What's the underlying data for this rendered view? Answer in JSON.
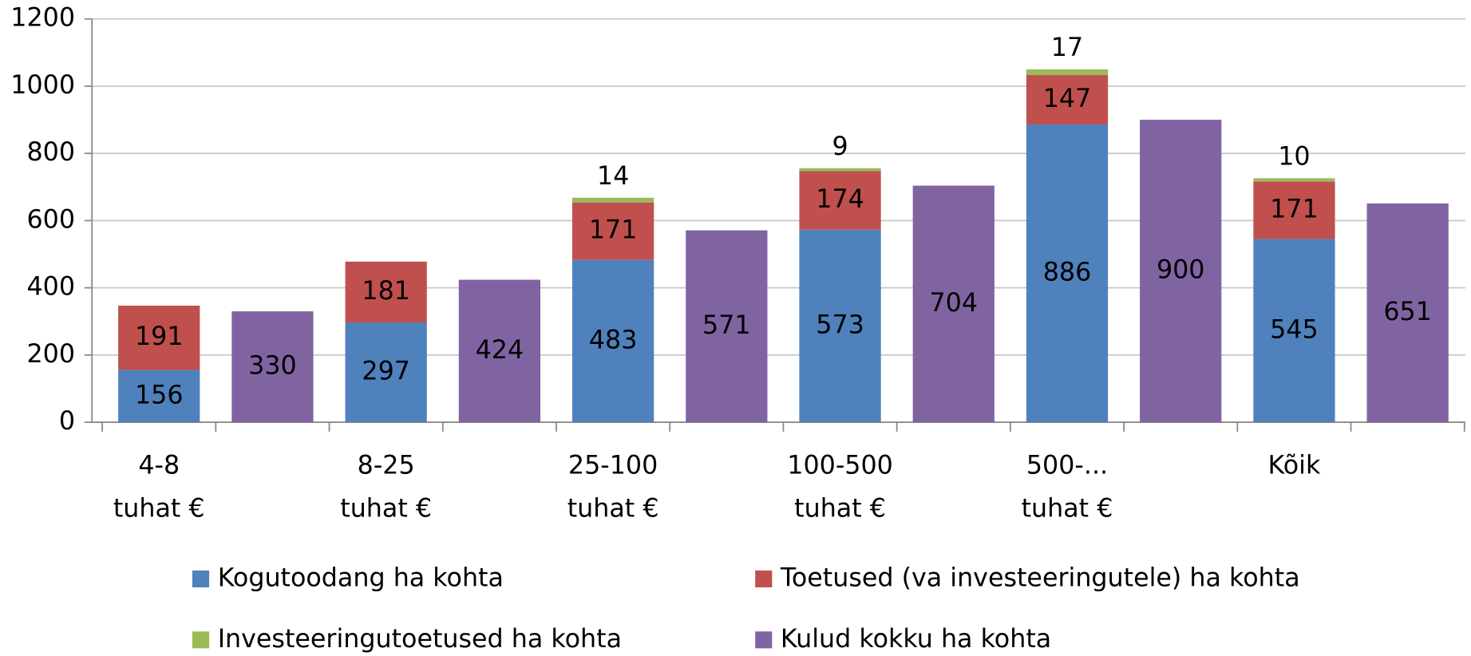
{
  "chart_data": {
    "type": "bar",
    "categories": [
      "4-8\ntuhat €",
      "8-25\ntuhat €",
      "25-100\ntuhat €",
      "100-500\ntuhat €",
      "500-...\ntuhat €",
      "Kõik"
    ],
    "series": [
      {
        "name": "Kogutoodang ha kohta",
        "color": "#4f81bd",
        "group": 0,
        "values": [
          156,
          297,
          483,
          573,
          886,
          545
        ]
      },
      {
        "name": "Toetused (va investeeringutele) ha kohta",
        "color": "#c0504d",
        "group": 0,
        "values": [
          191,
          181,
          171,
          174,
          147,
          171
        ]
      },
      {
        "name": "Investeeringutoetused ha kohta",
        "color": "#9bbb59",
        "group": 0,
        "values": [
          null,
          null,
          14,
          9,
          17,
          10
        ]
      },
      {
        "name": "Kulud kokku ha kohta",
        "color": "#8064a2",
        "group": 1,
        "values": [
          330,
          424,
          571,
          704,
          900,
          651
        ]
      }
    ],
    "ylim": [
      0,
      1200
    ],
    "yticks": [
      0,
      200,
      400,
      600,
      800,
      1000,
      1200
    ],
    "grid": true
  }
}
